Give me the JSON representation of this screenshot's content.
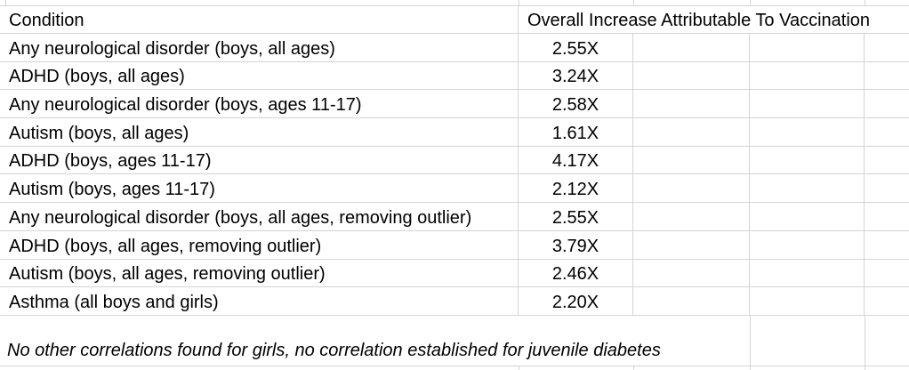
{
  "app": {
    "kind": "spreadsheet-table",
    "background_color": "#ffffff",
    "gridline_color": "#d4d4d4",
    "text_color": "#000000"
  },
  "table": {
    "headers": {
      "condition": "Condition",
      "overall_increase": "Overall Increase Attributable To Vaccination"
    },
    "rows": [
      {
        "condition": "Any neurological disorder (boys, all ages)",
        "value": "2.55X"
      },
      {
        "condition": "ADHD (boys, all ages)",
        "value": "3.24X"
      },
      {
        "condition": "Any neurological disorder (boys, ages 11-17)",
        "value": "2.58X"
      },
      {
        "condition": "Autism (boys, all ages)",
        "value": "1.61X"
      },
      {
        "condition": "ADHD (boys, ages 11-17)",
        "value": "4.17X"
      },
      {
        "condition": "Autism (boys, ages 11-17)",
        "value": "2.12X"
      },
      {
        "condition": "Any neurological disorder (boys, all ages, removing outlier)",
        "value": "2.55X"
      },
      {
        "condition": "ADHD (boys, all ages, removing outlier)",
        "value": "3.79X"
      },
      {
        "condition": "Autism (boys, all ages, removing outlier)",
        "value": "2.46X"
      },
      {
        "condition": "Asthma (all boys and girls)",
        "value": "2.20X"
      }
    ],
    "footnote": "No other correlations found for girls, no correlation established for juvenile diabetes"
  }
}
